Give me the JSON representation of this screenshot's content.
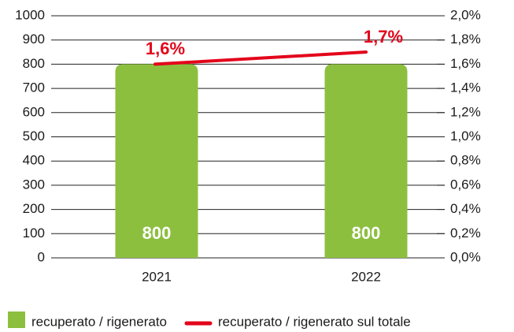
{
  "chart_data": {
    "type": "bar",
    "categories": [
      "2021",
      "2022"
    ],
    "series": [
      {
        "name": "recuperato / rigenerato",
        "color": "#8dbf3f",
        "values": [
          800,
          800
        ]
      },
      {
        "name": "recuperato / rigenerato sul totale",
        "color": "#e3051b",
        "type": "line",
        "axis": "y2",
        "values": [
          1.6,
          1.7
        ],
        "value_labels": [
          "1,6%",
          "1,7%"
        ]
      }
    ],
    "ylim": [
      0,
      1000
    ],
    "yticks": [
      0,
      100,
      200,
      300,
      400,
      500,
      600,
      700,
      800,
      900,
      1000
    ],
    "y2lim": [
      0,
      2.0
    ],
    "y2ticks": [
      {
        "value": 0,
        "label": "0,0%"
      },
      {
        "value": 0.2,
        "label": "0,2%"
      },
      {
        "value": 0.4,
        "label": "0,4%"
      },
      {
        "value": 0.6,
        "label": "0,6%"
      },
      {
        "value": 0.8,
        "label": "0,8%"
      },
      {
        "value": 1.0,
        "label": "1,0%"
      },
      {
        "value": 1.2,
        "label": "1,2%"
      },
      {
        "value": 1.4,
        "label": "1,4%"
      },
      {
        "value": 1.6,
        "label": "1,6%"
      },
      {
        "value": 1.8,
        "label": "1,8%"
      },
      {
        "value": 2.0,
        "label": "2,0%"
      }
    ],
    "grid": true,
    "legend": "bottom"
  }
}
